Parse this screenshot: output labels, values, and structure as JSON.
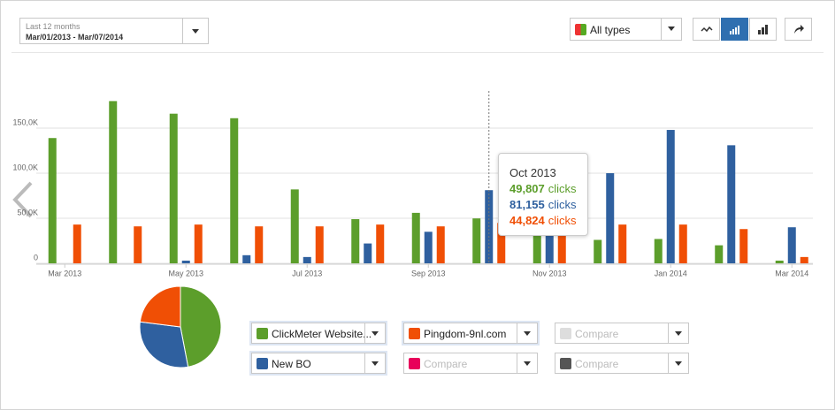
{
  "controls": {
    "date_range": {
      "caption": "Last 12 months",
      "value": "Mar/01/2013 - Mar/07/2014"
    },
    "type_filter": "All types",
    "selectors": [
      {
        "label": "ClickMeter Website..."
      },
      {
        "label": "New BO"
      },
      {
        "label": "Pingdom-9nl.com"
      },
      {
        "label": "Compare"
      },
      {
        "label": "Compare"
      },
      {
        "label": "Compare"
      }
    ]
  },
  "tooltip": {
    "title": "Oct 2013",
    "unit": "clicks",
    "value_labels": [
      "49,807",
      "81,155",
      "44,824"
    ]
  },
  "chart_data": [
    {
      "type": "bar",
      "categories": [
        "Mar 2013",
        null,
        "May 2013",
        null,
        "Jul 2013",
        null,
        "Sep 2013",
        null,
        "Nov 2013",
        null,
        "Jan 2014",
        null,
        "Mar 2014"
      ],
      "series": [
        {
          "name": "ClickMeter Website...",
          "color": "#5c9e2b",
          "values": [
            139000,
            180000,
            166000,
            161000,
            82000,
            49000,
            56000,
            49807,
            46000,
            26000,
            27000,
            20000,
            3000
          ]
        },
        {
          "name": "New BO",
          "color": "#2f609f",
          "values": [
            0,
            0,
            3000,
            9000,
            7000,
            22000,
            35000,
            81155,
            41000,
            100000,
            148000,
            131000,
            40000
          ]
        },
        {
          "name": "Pingdom-9nl.com",
          "color": "#f04f05",
          "values": [
            43000,
            41000,
            43000,
            41000,
            41000,
            43000,
            41000,
            44824,
            41000,
            43000,
            43000,
            38000,
            7000
          ]
        }
      ],
      "ylim": [
        0,
        220000
      ],
      "yticks": [
        0,
        {
          "value": 50000,
          "label": "50,0K"
        },
        {
          "value": 100000,
          "label": "100,0K"
        },
        {
          "value": 150000,
          "label": "150,0K"
        }
      ],
      "grid": true
    },
    {
      "type": "pie",
      "values": [
        47,
        30,
        23
      ],
      "colors": [
        "#5c9e2b",
        "#2f609f",
        "#f04f05"
      ]
    }
  ]
}
